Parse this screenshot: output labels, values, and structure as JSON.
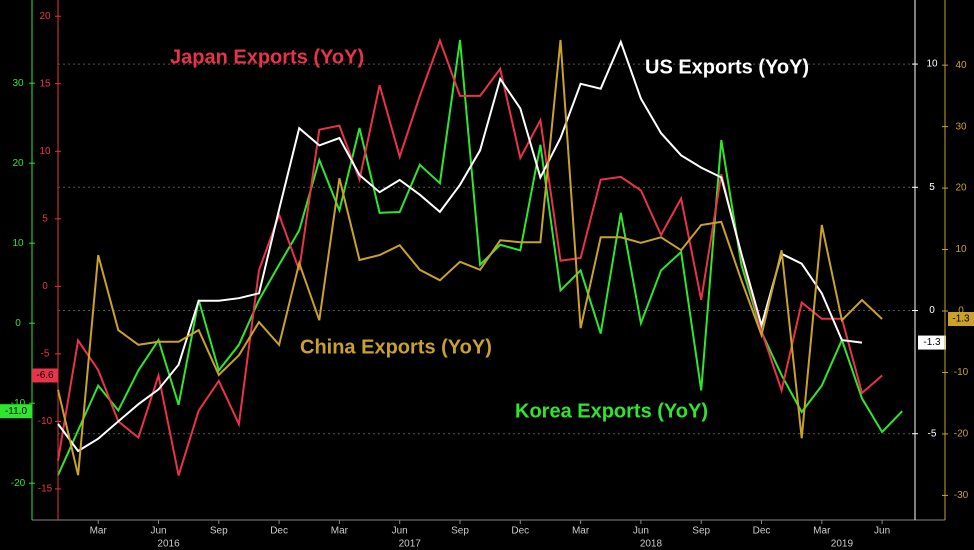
{
  "chart_data": {
    "type": "line",
    "categories": [
      null,
      null,
      "Mar",
      null,
      null,
      "Jun",
      null,
      null,
      "Sep",
      null,
      null,
      "Dec",
      null,
      null,
      "Mar",
      null,
      null,
      "Jun",
      null,
      null,
      "Sep",
      null,
      null,
      "Dec",
      null,
      null,
      "Mar",
      null,
      null,
      "Jun",
      null,
      null,
      "Sep",
      null,
      null,
      "Dec",
      null,
      null,
      "Mar",
      null,
      null,
      "Jun",
      null
    ],
    "years": [
      "2016",
      "2017",
      "2018",
      "2019"
    ],
    "series": [
      {
        "name": "Korea Exports (YoY)",
        "color": "#2ee62e",
        "ylim": [
          -24.6,
          40.4
        ],
        "yticks": [
          -20,
          -10,
          0,
          10,
          20,
          30
        ],
        "values": [
          -19,
          -13.4,
          -7.8,
          -10.9,
          -5.9,
          -2.1,
          -10.2,
          2.9,
          -5.9,
          -2.7,
          2.9,
          7.3,
          11.6,
          20.4,
          14.1,
          24.4,
          13.8,
          13.9,
          19.8,
          17.5,
          35.4,
          7.3,
          9.8,
          9.1,
          22.3,
          4.1,
          6.6,
          -1.3,
          13.8,
          0,
          6.6,
          8.9,
          -8.4,
          22.9,
          7.3,
          -1.1,
          -6.5,
          -11.1,
          -7.8,
          -2.1,
          -9.4,
          -13.6,
          -11
        ],
        "value_labels": [
          null,
          null,
          null,
          null,
          null,
          null,
          null,
          null,
          null,
          null,
          null,
          null,
          null,
          null,
          null,
          null,
          null,
          null,
          null,
          null,
          null,
          null,
          null,
          null,
          null,
          null,
          null,
          null,
          null,
          null,
          null,
          null,
          null,
          null,
          null,
          null,
          null,
          null,
          null,
          null,
          null,
          null,
          "-11.0"
        ]
      },
      {
        "name": "Japan Exports (YoY)",
        "color": "#e8334a",
        "ylim": [
          -17.3,
          21.2
        ],
        "yticks": [
          -15,
          -10,
          -5,
          0,
          5,
          10,
          15,
          20
        ],
        "values": [
          -12.9,
          -4,
          -6.2,
          -10,
          -11.2,
          -6.6,
          -14,
          -9.2,
          -7,
          -10.2,
          1.2,
          5.3,
          1.2,
          11.6,
          11.9,
          7.9,
          14.9,
          9.6,
          14.1,
          18.2,
          14.1,
          14.1,
          16.1,
          9.5,
          12.3,
          1.9,
          2.1,
          7.9,
          8.1,
          7.1,
          3.8,
          6.5,
          -1,
          8.3,
          2.3,
          -3.3,
          -7.7,
          -1.2,
          -2.4,
          -2.4,
          -7.9,
          -6.6,
          null
        ]
      },
      {
        "name": "US Exports (YoY)",
        "color": "#ffffff",
        "ylim": [
          -8.5,
          12.6
        ],
        "yticks": [
          -5,
          0,
          5,
          10
        ],
        "values": [
          -4.6,
          -5.7,
          -5.2,
          -4.5,
          -3.8,
          -3.2,
          -2.2,
          0.4,
          0.4,
          0.5,
          0.7,
          4.1,
          7.4,
          6.7,
          7,
          5.5,
          4.8,
          5.3,
          4.7,
          4,
          5.1,
          6.5,
          9.4,
          8.2,
          5.4,
          7,
          9.2,
          9,
          10.9,
          8.6,
          7.2,
          6.3,
          5.8,
          5.4,
          2.3,
          -0.6,
          2.3,
          1.9,
          0.7,
          -1.2,
          -1.3,
          null,
          null
        ]
      },
      {
        "name": "China Exports (YoY)",
        "color": "#c9a227",
        "ylim": [
          -34,
          50.6
        ],
        "yticks": [
          -30,
          -20,
          -10,
          0,
          10,
          20,
          30,
          40
        ],
        "values": [
          -12.8,
          -26.7,
          9.1,
          -3.1,
          -5.5,
          -5,
          -5,
          -3.1,
          -10.4,
          -7.2,
          -1.8,
          -5.5,
          7.8,
          -1.5,
          21.6,
          8.3,
          9.1,
          10.7,
          6.7,
          5,
          8,
          6.7,
          11.5,
          11.2,
          11.2,
          44.1,
          -2.8,
          12,
          12,
          11.1,
          12,
          9.9,
          14,
          14.5,
          5,
          -3.9,
          9.9,
          -20.7,
          14,
          -1.5,
          1.8,
          -1.3,
          null
        ]
      }
    ],
    "grid": true
  }
}
